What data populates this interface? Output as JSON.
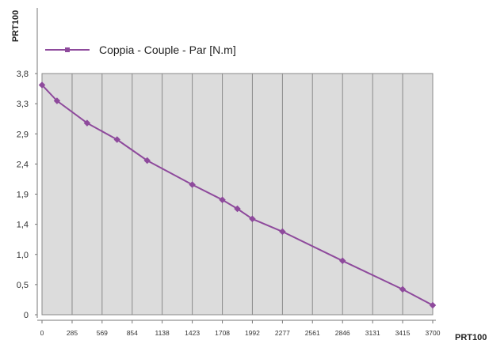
{
  "chart_data": {
    "type": "line",
    "ylabel": "PRT100",
    "xlabel": "PRT100",
    "x_ticks": [
      "0",
      "285",
      "569",
      "854",
      "1138",
      "1423",
      "1708",
      "1992",
      "2277",
      "2561",
      "2846",
      "3131",
      "3415",
      "3700"
    ],
    "y_ticks": [
      "0",
      "0,5",
      "1,0",
      "1,4",
      "1,9",
      "2,4",
      "2,9",
      "3,3",
      "3,8"
    ],
    "xlim": [
      0,
      3700
    ],
    "ylim": [
      0,
      3.8
    ],
    "grid": "vertical",
    "legend_position": "top-left",
    "series": [
      {
        "name": "Coppia - Couple - Par [N.m]",
        "color": "#8e4a9c",
        "x": [
          0,
          142,
          427,
          711,
          996,
          1423,
          1708,
          1850,
          1992,
          2277,
          2846,
          3415,
          3700
        ],
        "y": [
          3.62,
          3.37,
          3.02,
          2.76,
          2.43,
          2.05,
          1.81,
          1.67,
          1.51,
          1.31,
          0.85,
          0.4,
          0.15
        ]
      }
    ]
  }
}
